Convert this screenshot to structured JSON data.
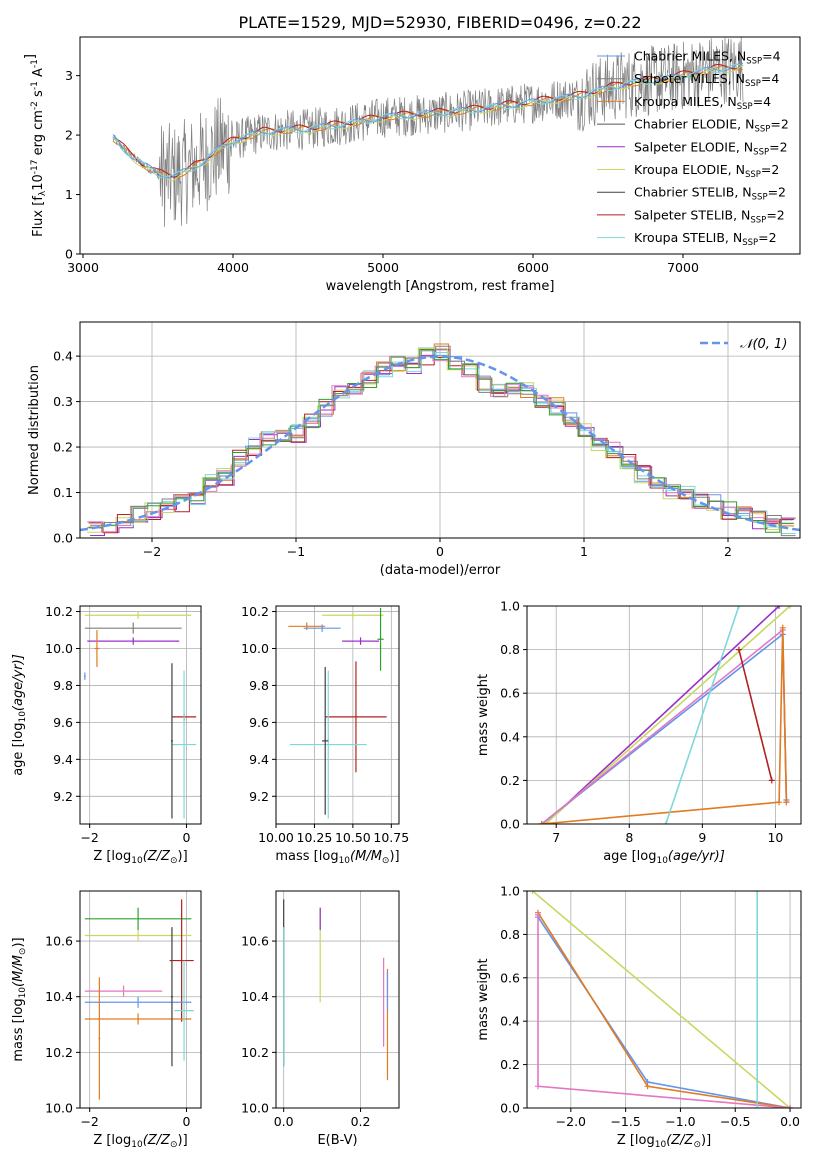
{
  "figure_title": "PLATE=1529, MJD=52930, FIBERID=0496, z=0.22",
  "colors": {
    "chabrier_miles": "#6495ed",
    "salpeter_miles": "#7f7f7f",
    "kroupa_miles": "#e07b20",
    "chabrier_elodie": "#555555",
    "salpeter_elodie": "#9b30c8",
    "kroupa_elodie": "#c8d860",
    "chabrier_stelib": "#404040",
    "salpeter_stelib": "#b22222",
    "kroupa_stelib": "#7fd8d8",
    "pink": "#e377c2",
    "green": "#2ca02c"
  },
  "chart_data": [
    {
      "id": "spectrum",
      "type": "line",
      "xlabel": "wavelength [Angstrom, rest frame]",
      "ylabel": "Flux [f",
      "ylabel_sub": "λ",
      "ylabel_tail": "10",
      "ylabel_sup1": "-17",
      "ylabel_mid": " erg cm",
      "ylabel_sup2": "-2",
      "ylabel_mid2": " s",
      "ylabel_sup3": "-1",
      "ylabel_mid3": " A",
      "ylabel_sup4": "-1",
      "ylabel_end": "]",
      "xlim": [
        2980,
        7780
      ],
      "ylim": [
        0,
        3.65
      ],
      "xticks": [
        "3000",
        "4000",
        "5000",
        "6000",
        "7000"
      ],
      "xtick_values": [
        3000,
        4000,
        5000,
        6000,
        7000
      ],
      "yticks": [
        "0",
        "1",
        "2",
        "3"
      ],
      "ytick_values": [
        0,
        1,
        2,
        3
      ],
      "continuum": {
        "x": [
          3200,
          3300,
          3400,
          3500,
          3600,
          3700,
          3800,
          3900,
          4000,
          4200,
          4500,
          4800,
          5000,
          5300,
          5600,
          6000,
          6300,
          6600,
          6900,
          7200,
          7400
        ],
        "y": [
          1.95,
          1.7,
          1.5,
          1.35,
          1.3,
          1.4,
          1.55,
          1.75,
          1.9,
          2.05,
          2.1,
          2.2,
          2.3,
          2.35,
          2.42,
          2.55,
          2.65,
          2.85,
          2.95,
          3.1,
          3.15
        ]
      },
      "legend": [
        {
          "label": "Chabrier MILES, N",
          "sub": "SSP",
          "tail": "=4",
          "color_key": "chabrier_miles"
        },
        {
          "label": "Salpeter MILES, N",
          "sub": "SSP",
          "tail": "=4",
          "color_key": "salpeter_miles"
        },
        {
          "label": "Kroupa MILES, N",
          "sub": "SSP",
          "tail": "=4",
          "color_key": "kroupa_miles"
        },
        {
          "label": "Chabrier ELODIE, N",
          "sub": "SSP",
          "tail": "=2",
          "color_key": "chabrier_elodie"
        },
        {
          "label": "Salpeter ELODIE, N",
          "sub": "SSP",
          "tail": "=2",
          "color_key": "salpeter_elodie"
        },
        {
          "label": "Kroupa ELODIE, N",
          "sub": "SSP",
          "tail": "=2",
          "color_key": "kroupa_elodie"
        },
        {
          "label": "Chabrier STELIB, N",
          "sub": "SSP",
          "tail": "=2",
          "color_key": "chabrier_stelib"
        },
        {
          "label": "Salpeter STELIB, N",
          "sub": "SSP",
          "tail": "=2",
          "color_key": "salpeter_stelib"
        },
        {
          "label": "Kroupa STELIB, N",
          "sub": "SSP",
          "tail": "=2",
          "color_key": "kroupa_stelib"
        }
      ],
      "legend_position": "right"
    },
    {
      "id": "residuals",
      "type": "line",
      "xlabel": "(data-model)/error",
      "ylabel": "Normed distribution",
      "xlim": [
        -2.5,
        2.5
      ],
      "ylim": [
        0,
        0.475
      ],
      "xticks": [
        "−2",
        "−1",
        "0",
        "1",
        "2"
      ],
      "xtick_values": [
        -2,
        -1,
        0,
        1,
        2
      ],
      "yticks": [
        "0.0",
        "0.1",
        "0.2",
        "0.3",
        "0.4"
      ],
      "ytick_values": [
        0,
        0.1,
        0.2,
        0.3,
        0.4
      ],
      "grid": true,
      "legend": [
        {
          "label": "𝒩(0, 1)",
          "color": "#6495ed",
          "style": "dashed"
        }
      ],
      "legend_position": "top-right",
      "histogram_center": {
        "x": [
          -2.4,
          -2.3,
          -2.2,
          -2.1,
          -2.0,
          -1.9,
          -1.8,
          -1.7,
          -1.6,
          -1.5,
          -1.4,
          -1.3,
          -1.2,
          -1.1,
          -1.0,
          -0.9,
          -0.8,
          -0.7,
          -0.6,
          -0.5,
          -0.4,
          -0.3,
          -0.2,
          -0.1,
          0.0,
          0.1,
          0.2,
          0.3,
          0.4,
          0.5,
          0.6,
          0.7,
          0.8,
          0.9,
          1.0,
          1.1,
          1.2,
          1.3,
          1.4,
          1.5,
          1.6,
          1.7,
          1.8,
          1.9,
          2.0,
          2.1,
          2.2,
          2.3,
          2.4
        ],
        "y": [
          0.022,
          0.03,
          0.04,
          0.052,
          0.06,
          0.066,
          0.077,
          0.09,
          0.12,
          0.135,
          0.175,
          0.2,
          0.215,
          0.225,
          0.23,
          0.255,
          0.285,
          0.315,
          0.33,
          0.35,
          0.37,
          0.385,
          0.38,
          0.4,
          0.41,
          0.38,
          0.365,
          0.34,
          0.33,
          0.33,
          0.325,
          0.3,
          0.29,
          0.26,
          0.24,
          0.205,
          0.195,
          0.17,
          0.14,
          0.12,
          0.1,
          0.095,
          0.085,
          0.08,
          0.06,
          0.05,
          0.04,
          0.03,
          0.025
        ]
      }
    },
    {
      "id": "age_vs_Z",
      "type": "scatter",
      "xlabel": "Z [log",
      "xlabel_sub": "10",
      "xlabel_tail": "(Z/Z",
      "xlabel_odot": "⊙",
      "xlabel_end": ")]",
      "ylabel": "age  [log",
      "ylabel_sub": "10",
      "ylabel_tail": "(age/yr)]",
      "xlim": [
        -2.2,
        0.3
      ],
      "ylim": [
        9.05,
        10.23
      ],
      "xticks": [
        "−2",
        "0"
      ],
      "xtick_values": [
        -2,
        0
      ],
      "yticks": [
        "9.2",
        "9.4",
        "9.6",
        "9.8",
        "10.0",
        "10.2"
      ],
      "ytick_values": [
        9.2,
        9.4,
        9.6,
        9.8,
        10.0,
        10.2
      ],
      "points": [
        {
          "x": -1.0,
          "y": 10.18,
          "xerr": 1.1,
          "yerr": 0.02,
          "color_key": "kroupa_elodie"
        },
        {
          "x": -1.1,
          "y": 10.11,
          "xerr": 1.0,
          "yerr": 0.03,
          "color_key": "salpeter_miles"
        },
        {
          "x": -1.1,
          "y": 10.04,
          "xerr": 0.95,
          "yerr": 0.02,
          "color_key": "salpeter_elodie"
        },
        {
          "x": -1.85,
          "y": 10.0,
          "xerr": 0.05,
          "yerr": 0.1,
          "color_key": "kroupa_miles"
        },
        {
          "x": -2.1,
          "y": 9.85,
          "xerr": 0.02,
          "yerr": 0.02,
          "color_key": "chabrier_miles"
        },
        {
          "x": -0.05,
          "y": 9.63,
          "xerr": 0.25,
          "yerr": 0.02,
          "color_key": "salpeter_stelib"
        },
        {
          "x": -0.05,
          "y": 9.48,
          "xerr": 0.25,
          "yerr": 0.4,
          "color_key": "kroupa_stelib"
        },
        {
          "x": -0.3,
          "y": 9.5,
          "xerr": 0.02,
          "yerr": 0.42,
          "color_key": "chabrier_stelib"
        }
      ]
    },
    {
      "id": "age_vs_mass",
      "type": "scatter",
      "xlabel": "mass [log",
      "xlabel_sub": "10",
      "xlabel_tail": "(M/M",
      "xlabel_odot": "⊙",
      "xlabel_end": ")]",
      "xlim": [
        10.0,
        10.8
      ],
      "ylim": [
        9.05,
        10.23
      ],
      "xticks": [
        "10.00",
        "10.25",
        "10.50",
        "10.75"
      ],
      "xtick_values": [
        10.0,
        10.25,
        10.5,
        10.75
      ],
      "yticks": [
        "9.2",
        "9.4",
        "9.6",
        "9.8",
        "10.0",
        "10.2"
      ],
      "ytick_values": [
        9.2,
        9.4,
        9.6,
        9.8,
        10.0,
        10.2
      ],
      "points": [
        {
          "x": 10.5,
          "y": 10.18,
          "xerr": 0.2,
          "yerr": 0.02,
          "color_key": "kroupa_elodie"
        },
        {
          "x": 10.2,
          "y": 10.12,
          "xerr": 0.12,
          "yerr": 0.02,
          "color_key": "kroupa_miles"
        },
        {
          "x": 10.3,
          "y": 10.11,
          "xerr": 0.12,
          "yerr": 0.02,
          "color_key": "chabrier_miles"
        },
        {
          "x": 10.55,
          "y": 10.04,
          "xerr": 0.12,
          "yerr": 0.02,
          "color_key": "salpeter_elodie"
        },
        {
          "x": 10.52,
          "y": 9.63,
          "xerr": 0.2,
          "yerr": 0.3,
          "color_key": "salpeter_stelib"
        },
        {
          "x": 10.34,
          "y": 9.48,
          "xerr": 0.25,
          "yerr": 0.4,
          "color_key": "kroupa_stelib"
        },
        {
          "x": 10.32,
          "y": 9.5,
          "xerr": 0.02,
          "yerr": 0.4,
          "color_key": "chabrier_stelib"
        },
        {
          "x": 10.68,
          "y": 10.05,
          "xerr": 0.02,
          "yerr": 0.17,
          "color_key": "green"
        }
      ]
    },
    {
      "id": "weight_vs_age",
      "type": "line",
      "xlabel": "age  [log",
      "xlabel_sub": "10",
      "xlabel_tail": "(age/yr)]",
      "ylabel": "mass weight",
      "xlim": [
        6.6,
        10.35
      ],
      "ylim": [
        0,
        1
      ],
      "xticks": [
        "7",
        "8",
        "9",
        "10"
      ],
      "xtick_values": [
        7,
        8,
        9,
        10
      ],
      "yticks": [
        "0.0",
        "0.2",
        "0.4",
        "0.6",
        "0.8",
        "1.0"
      ],
      "ytick_values": [
        0,
        0.2,
        0.4,
        0.6,
        0.8,
        1.0
      ],
      "series": [
        {
          "color_key": "salpeter_elodie",
          "x": [
            6.85,
            10.05
          ],
          "y": [
            0,
            1.0
          ]
        },
        {
          "color_key": "kroupa_elodie",
          "x": [
            6.85,
            10.2
          ],
          "y": [
            0,
            1.0
          ]
        },
        {
          "color_key": "chabrier_miles",
          "x": [
            6.8,
            10.1,
            10.15
          ],
          "y": [
            0,
            0.87,
            0.11
          ]
        },
        {
          "color_key": "pink",
          "x": [
            6.8,
            10.1,
            10.15
          ],
          "y": [
            0,
            0.89,
            0.1
          ]
        },
        {
          "color_key": "kroupa_miles",
          "x": [
            6.8,
            10.05,
            10.1,
            10.15
          ],
          "y": [
            0,
            0.1,
            0.9,
            0.1
          ]
        },
        {
          "color_key": "salpeter_stelib",
          "x": [
            9.5,
            9.95
          ],
          "y": [
            0.8,
            0.2
          ]
        },
        {
          "color_key": "kroupa_stelib",
          "x": [
            8.5,
            9.5
          ],
          "y": [
            0,
            1.0
          ]
        }
      ]
    },
    {
      "id": "mass_vs_Z",
      "type": "scatter",
      "xlabel": "Z [log",
      "xlabel_sub": "10",
      "xlabel_tail": "(Z/Z",
      "xlabel_odot": "⊙",
      "xlabel_end": ")]",
      "ylabel": "mass [log",
      "ylabel_sub": "10",
      "ylabel_tail": "(M/M",
      "ylabel_odot": "⊙",
      "ylabel_end": ")]",
      "xlim": [
        -2.2,
        0.3
      ],
      "ylim": [
        10.0,
        10.78
      ],
      "xticks": [
        "−2",
        "0"
      ],
      "xtick_values": [
        -2,
        0
      ],
      "yticks": [
        "10.0",
        "10.2",
        "10.4",
        "10.6"
      ],
      "ytick_values": [
        10.0,
        10.2,
        10.4,
        10.6
      ],
      "points": [
        {
          "x": -1.0,
          "y": 10.68,
          "xerr": 1.1,
          "yerr": 0.04,
          "color_key": "green"
        },
        {
          "x": -1.0,
          "y": 10.62,
          "xerr": 1.1,
          "yerr": 0.02,
          "color_key": "kroupa_elodie"
        },
        {
          "x": -0.1,
          "y": 10.53,
          "xerr": 0.25,
          "yerr": 0.22,
          "color_key": "salpeter_stelib"
        },
        {
          "x": -1.3,
          "y": 10.42,
          "xerr": 0.8,
          "yerr": 0.02,
          "color_key": "pink"
        },
        {
          "x": -1.0,
          "y": 10.38,
          "xerr": 1.1,
          "yerr": 0.02,
          "color_key": "chabrier_miles"
        },
        {
          "x": -1.0,
          "y": 10.32,
          "xerr": 1.1,
          "yerr": 0.02,
          "color_key": "kroupa_miles"
        },
        {
          "x": -0.05,
          "y": 10.35,
          "xerr": 0.2,
          "yerr": 0.18,
          "color_key": "kroupa_stelib"
        },
        {
          "x": -0.3,
          "y": 10.4,
          "xerr": 0.02,
          "yerr": 0.25,
          "color_key": "chabrier_stelib"
        },
        {
          "x": -1.8,
          "y": 10.25,
          "xerr": 0.02,
          "yerr": 0.22,
          "color_key": "kroupa_miles"
        }
      ]
    },
    {
      "id": "mass_vs_EBV",
      "type": "scatter",
      "xlabel": "E(B-V)",
      "xlim": [
        -0.02,
        0.3
      ],
      "ylim": [
        10.0,
        10.78
      ],
      "xticks": [
        "0.0",
        "0.2"
      ],
      "xtick_values": [
        0,
        0.2
      ],
      "yticks": [
        "10.0",
        "10.2",
        "10.4",
        "10.6"
      ],
      "ytick_values": [
        10.0,
        10.2,
        10.4,
        10.6
      ],
      "points": [
        {
          "x": 0.0,
          "y": 10.45,
          "yerr": 0.3,
          "color_key": "chabrier_stelib"
        },
        {
          "x": 0.0,
          "y": 10.4,
          "yerr": 0.25,
          "color_key": "kroupa_stelib"
        },
        {
          "x": 0.095,
          "y": 10.55,
          "yerr": 0.17,
          "color_key": "kroupa_elodie"
        },
        {
          "x": 0.095,
          "y": 10.68,
          "yerr": 0.04,
          "color_key": "salpeter_elodie"
        },
        {
          "x": 0.26,
          "y": 10.38,
          "yerr": 0.16,
          "color_key": "pink"
        },
        {
          "x": 0.27,
          "y": 10.3,
          "yerr": 0.2,
          "color_key": "kroupa_miles"
        },
        {
          "x": 0.27,
          "y": 10.42,
          "yerr": 0.07,
          "color_key": "chabrier_miles"
        }
      ]
    },
    {
      "id": "weight_vs_Z",
      "type": "line",
      "xlabel": "Z [log",
      "xlabel_sub": "10",
      "xlabel_tail": "(Z/Z",
      "xlabel_odot": "⊙",
      "xlabel_end": ")]",
      "ylabel": "mass weight",
      "xlim": [
        -2.4,
        0.1
      ],
      "ylim": [
        0,
        1
      ],
      "xticks": [
        "−2.0",
        "−1.5",
        "−1.0",
        "−0.5",
        "0.0"
      ],
      "xtick_values": [
        -2.0,
        -1.5,
        -1.0,
        -0.5,
        0.0
      ],
      "yticks": [
        "0.0",
        "0.2",
        "0.4",
        "0.6",
        "0.8",
        "1.0"
      ],
      "ytick_values": [
        0,
        0.2,
        0.4,
        0.6,
        0.8,
        1.0
      ],
      "series": [
        {
          "color_key": "kroupa_elodie",
          "x": [
            -2.35,
            0.0
          ],
          "y": [
            1.0,
            0.0
          ]
        },
        {
          "color_key": "chabrier_miles",
          "x": [
            -2.3,
            -1.3,
            0.0
          ],
          "y": [
            0.88,
            0.12,
            0.0
          ]
        },
        {
          "color_key": "kroupa_miles",
          "x": [
            -2.3,
            -1.3,
            0.0
          ],
          "y": [
            0.9,
            0.1,
            0.0
          ]
        },
        {
          "color_key": "pink",
          "x": [
            -2.3,
            -2.3,
            0.0
          ],
          "y": [
            0.89,
            0.1,
            0.0
          ]
        },
        {
          "color_key": "kroupa_stelib",
          "x": [
            -0.3,
            -0.3
          ],
          "y": [
            0.0,
            1.0
          ]
        }
      ]
    }
  ]
}
